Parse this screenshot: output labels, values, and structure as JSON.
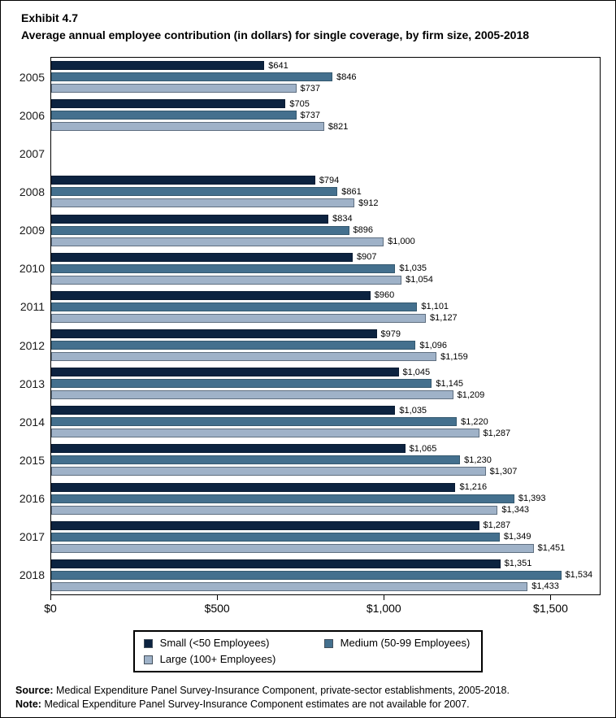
{
  "header": {
    "exhibit": "Exhibit 4.7",
    "title": "Average annual employee contribution (in dollars) for single coverage, by firm size, 2005-2018"
  },
  "chart_data": {
    "type": "bar",
    "orientation": "horizontal",
    "title": "Average annual employee contribution (in dollars) for single coverage, by firm size, 2005-2018",
    "categories": [
      "2005",
      "2006",
      "2007",
      "2008",
      "2009",
      "2010",
      "2011",
      "2012",
      "2013",
      "2014",
      "2015",
      "2016",
      "2017",
      "2018"
    ],
    "series": [
      {
        "name": "Small (<50 Employees)",
        "color": "#0c2340",
        "border_color": "#0a1c33",
        "values": [
          641,
          705,
          null,
          794,
          834,
          907,
          960,
          979,
          1045,
          1035,
          1065,
          1216,
          1287,
          1351
        ]
      },
      {
        "name": "Medium (50-99 Employees)",
        "color": "#44708e",
        "border_color": "#35596f",
        "values": [
          846,
          737,
          null,
          861,
          896,
          1035,
          1101,
          1096,
          1145,
          1220,
          1230,
          1393,
          1349,
          1534
        ]
      },
      {
        "name": "Large (100+ Employees)",
        "color": "#9fb2c8",
        "border_color": "#5f6f80",
        "values": [
          737,
          821,
          null,
          912,
          1000,
          1054,
          1127,
          1159,
          1209,
          1287,
          1307,
          1343,
          1451,
          1433
        ]
      }
    ],
    "xlabel": "",
    "ylabel": "",
    "xlim": [
      0,
      1650
    ],
    "x_ticks": [
      {
        "value": 0,
        "label": "$0"
      },
      {
        "value": 500,
        "label": "$500"
      },
      {
        "value": 1000,
        "label": "$1,000"
      },
      {
        "value": 1500,
        "label": "$1,500"
      }
    ],
    "value_label_prefix": "$",
    "grid": false,
    "legend_position": "bottom",
    "missing_data_years": [
      "2007"
    ]
  },
  "footer": {
    "source_label": "Source:",
    "source_text": "Medical Expenditure Panel Survey-Insurance Component, private-sector establishments, 2005-2018.",
    "note_label": "Note:",
    "note_text": "Medical Expenditure Panel Survey-Insurance Component estimates are not available for 2007."
  }
}
